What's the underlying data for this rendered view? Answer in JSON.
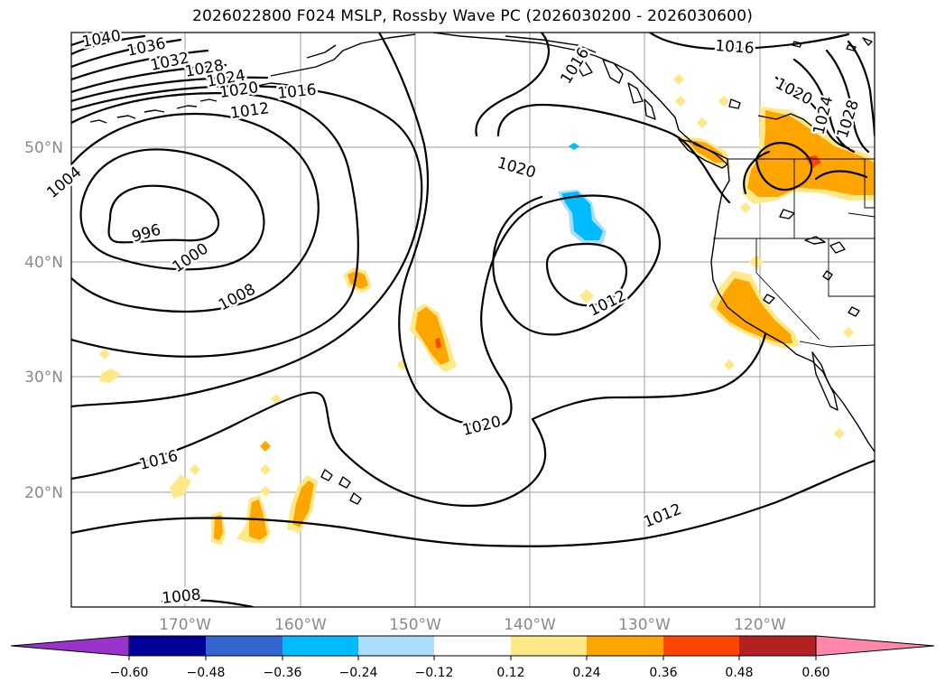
{
  "title": "2026022800 F024 MSLP, Rossby Wave PC (2026030200 - 2026030600)",
  "lat_labels": [
    "50°N",
    "40°N",
    "30°N",
    "20°N"
  ],
  "lon_labels": [
    "170°W",
    "160°W",
    "150°W",
    "140°W",
    "130°W",
    "120°W"
  ],
  "contour_labels": [
    {
      "id": "l1040",
      "text": "1040"
    },
    {
      "id": "l1036",
      "text": "1036"
    },
    {
      "id": "l1032",
      "text": "1032"
    },
    {
      "id": "l1028a",
      "text": "1028"
    },
    {
      "id": "l1024a",
      "text": "1024"
    },
    {
      "id": "l1020a",
      "text": "1020"
    },
    {
      "id": "l1016a",
      "text": "1016"
    },
    {
      "id": "l1012a",
      "text": "1012"
    },
    {
      "id": "l1004",
      "text": "1004"
    },
    {
      "id": "l996",
      "text": "996"
    },
    {
      "id": "l1000",
      "text": "1000"
    },
    {
      "id": "l1008a",
      "text": "1008"
    },
    {
      "id": "l1020b",
      "text": "1020"
    },
    {
      "id": "l1012b",
      "text": "1012"
    },
    {
      "id": "l1020c",
      "text": "1020"
    },
    {
      "id": "l1016b",
      "text": "1016"
    },
    {
      "id": "l1012c",
      "text": "1012"
    },
    {
      "id": "l1008b",
      "text": "1008"
    },
    {
      "id": "l1016c",
      "text": "1016"
    },
    {
      "id": "l1020d",
      "text": "1020"
    },
    {
      "id": "l1024b",
      "text": "1024"
    },
    {
      "id": "l1028b",
      "text": "1028"
    },
    {
      "id": "l1016d",
      "text": "1016"
    }
  ],
  "colorbar": {
    "colors": [
      "#9933cc",
      "#000099",
      "#3366cc",
      "#00bbff",
      "#aaddff",
      "#ffffff",
      "#ffe888",
      "#ffa500",
      "#ff4500",
      "#b22222",
      "#ff88aa"
    ],
    "ticks": [
      "−0.60",
      "−0.48",
      "−0.36",
      "−0.24",
      "−0.12",
      "0.12",
      "0.24",
      "0.36",
      "0.48",
      "0.60"
    ]
  },
  "anomaly_colors": {
    "pale": "#ffe888",
    "orange": "#ffa500",
    "red": "#ff4500",
    "lightblue": "#aaddff",
    "cyan": "#00bbff"
  }
}
